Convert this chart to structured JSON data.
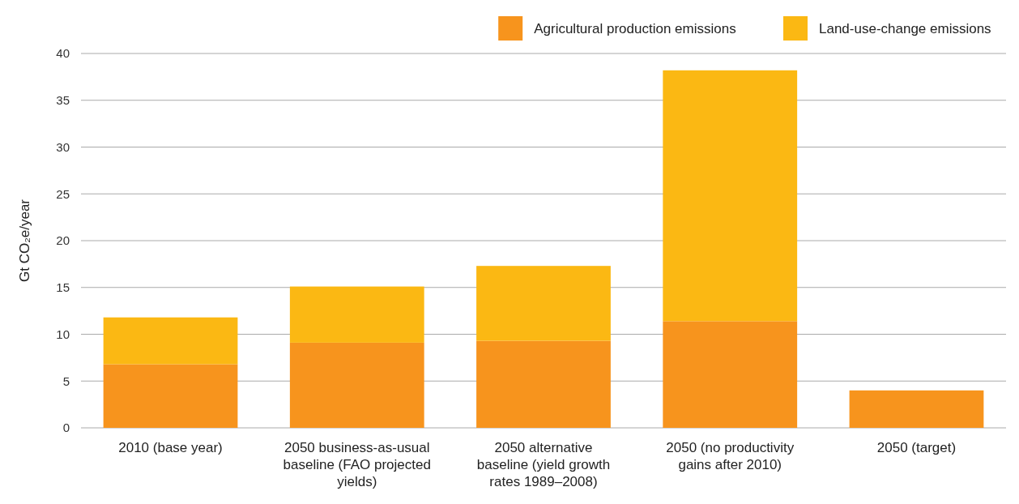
{
  "chart_data": {
    "type": "bar",
    "stacked": true,
    "ylabel": "Gt CO₂e/year",
    "categories": [
      "2010 (base year)",
      "2050 business-as-usual baseline (FAO projected yields)",
      "2050 alternative baseline (yield growth rates 1989–2008)",
      "2050 (no productivity gains after 2010)",
      "2050 (target)"
    ],
    "series": [
      {
        "name": "Agricultural production emissions",
        "color": "#f7941d",
        "values": [
          6.8,
          9.1,
          9.3,
          11.4,
          4.0
        ]
      },
      {
        "name": "Land-use-change emissions",
        "color": "#fbb813",
        "values": [
          5.0,
          6.0,
          8.0,
          26.8,
          0
        ]
      }
    ],
    "ylim": [
      0,
      40
    ],
    "yticks": [
      0,
      5,
      10,
      15,
      20,
      25,
      30,
      35,
      40
    ],
    "grid": "y",
    "legend": "top right"
  }
}
